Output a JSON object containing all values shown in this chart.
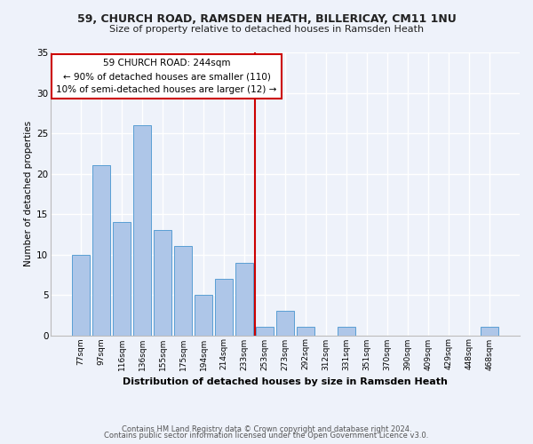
{
  "title1": "59, CHURCH ROAD, RAMSDEN HEATH, BILLERICAY, CM11 1NU",
  "title2": "Size of property relative to detached houses in Ramsden Heath",
  "xlabel": "Distribution of detached houses by size in Ramsden Heath",
  "ylabel": "Number of detached properties",
  "categories": [
    "77sqm",
    "97sqm",
    "116sqm",
    "136sqm",
    "155sqm",
    "175sqm",
    "194sqm",
    "214sqm",
    "233sqm",
    "253sqm",
    "273sqm",
    "292sqm",
    "312sqm",
    "331sqm",
    "351sqm",
    "370sqm",
    "390sqm",
    "409sqm",
    "429sqm",
    "448sqm",
    "468sqm"
  ],
  "values": [
    10,
    21,
    14,
    26,
    13,
    11,
    5,
    7,
    9,
    1,
    3,
    1,
    0,
    1,
    0,
    0,
    0,
    0,
    0,
    0,
    1
  ],
  "bar_color": "#aec6e8",
  "bar_edge_color": "#5a9fd4",
  "vline_x": 8.5,
  "vline_color": "#cc0000",
  "annotation_text": "59 CHURCH ROAD: 244sqm\n← 90% of detached houses are smaller (110)\n10% of semi-detached houses are larger (12) →",
  "annotation_box_color": "#ffffff",
  "annotation_box_edge_color": "#cc0000",
  "ylim": [
    0,
    35
  ],
  "yticks": [
    0,
    5,
    10,
    15,
    20,
    25,
    30,
    35
  ],
  "background_color": "#eef2fa",
  "grid_color": "#ffffff",
  "footer1": "Contains HM Land Registry data © Crown copyright and database right 2024.",
  "footer2": "Contains public sector information licensed under the Open Government Licence v3.0."
}
